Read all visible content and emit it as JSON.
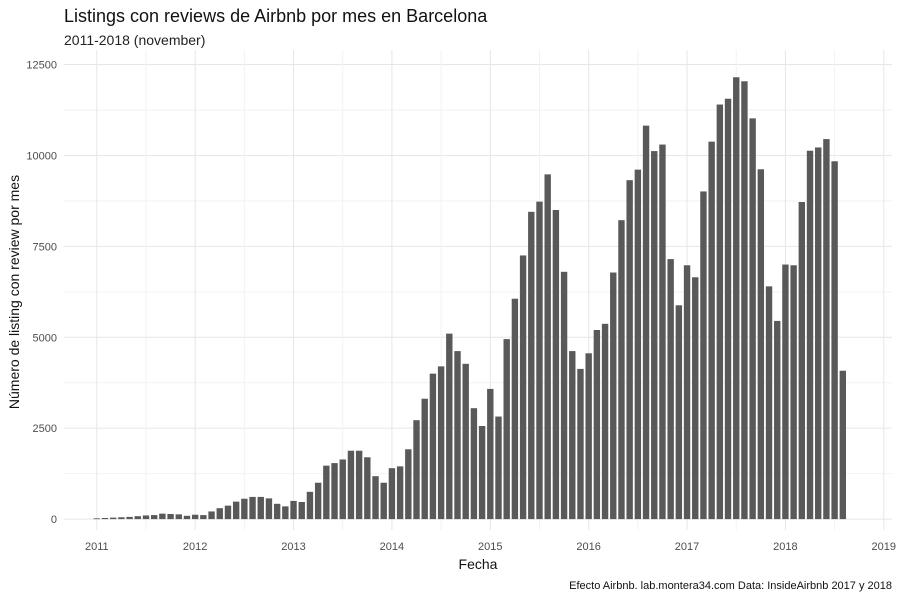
{
  "chart_data": {
    "type": "bar",
    "title": "Listings con reviews de Airbnb por mes en Barcelona",
    "subtitle": "2011-2018 (november)",
    "xlabel": "Fecha",
    "ylabel": "Número de listing con review por mes",
    "caption": "Efecto Airbnb. lab.montera34.com Data: InsideAirbnb 2017 y 2018",
    "x_start": "2011-01",
    "x_end": "2018-08",
    "xlim": [
      "2010-09",
      "2019-02"
    ],
    "ylim": [
      -300,
      12900
    ],
    "grid": true,
    "bar_color": "#595959",
    "x_ticks": [
      "2011",
      "2012",
      "2013",
      "2014",
      "2015",
      "2016",
      "2017",
      "2018",
      "2019"
    ],
    "y_ticks": [
      0,
      2500,
      5000,
      7500,
      10000,
      12500
    ],
    "y_tick_labels": [
      "0",
      "2500",
      "5000",
      "7500",
      "10000",
      "12500"
    ],
    "values": [
      20,
      30,
      40,
      50,
      60,
      80,
      100,
      110,
      150,
      140,
      130,
      90,
      120,
      110,
      210,
      300,
      370,
      480,
      560,
      610,
      610,
      570,
      420,
      350,
      500,
      470,
      750,
      1000,
      1470,
      1540,
      1640,
      1880,
      1880,
      1700,
      1180,
      1000,
      1400,
      1450,
      1920,
      2720,
      3310,
      4000,
      4200,
      5100,
      4620,
      4270,
      3050,
      2560,
      3580,
      2820,
      4950,
      6060,
      7250,
      8450,
      8730,
      9480,
      8500,
      6800,
      4620,
      4130,
      4560,
      5200,
      5370,
      6780,
      8220,
      9320,
      9610,
      10820,
      10120,
      10300,
      7150,
      5880,
      6980,
      6650,
      9010,
      10380,
      11400,
      11560,
      12150,
      12040,
      11020,
      9620,
      6400,
      5450,
      7000,
      6980,
      8720,
      10130,
      10220,
      10450,
      9840,
      4080
    ]
  }
}
